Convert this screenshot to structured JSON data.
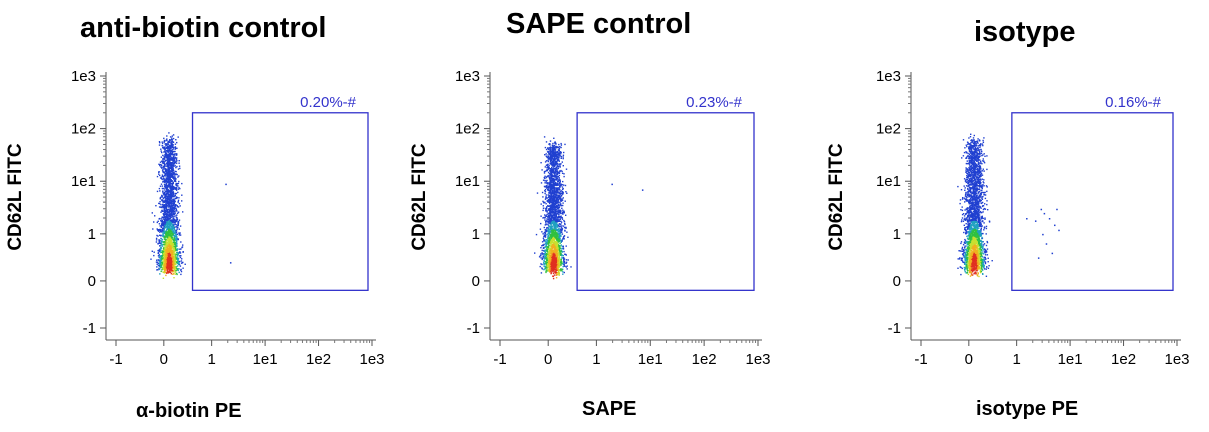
{
  "chart_data": [
    {
      "type": "scatter",
      "title": "anti-biotin control",
      "xlabel": "α-biotin PE",
      "ylabel": "CD62L FITC",
      "scale": "biexponential",
      "x_ticks": [
        "-1",
        "0",
        "1",
        "1e1",
        "1e2",
        "1e3"
      ],
      "y_ticks": [
        "-1",
        "0",
        "1",
        "1e1",
        "1e2",
        "1e3"
      ],
      "gate": {
        "x_range": [
          "0.6",
          "1e3"
        ],
        "y_range": [
          "-0.2",
          "2e2"
        ],
        "label": "0.20%-#"
      },
      "population": {
        "x_center": "0.1",
        "y_center": "0.3",
        "y_spread_to": "6e1"
      },
      "color": "#3333cc"
    },
    {
      "type": "scatter",
      "title": "SAPE control",
      "xlabel": "SAPE",
      "ylabel": "CD62L FITC",
      "scale": "biexponential",
      "x_ticks": [
        "-1",
        "0",
        "1",
        "1e1",
        "1e2",
        "1e3"
      ],
      "y_ticks": [
        "-1",
        "0",
        "1",
        "1e1",
        "1e2",
        "1e3"
      ],
      "gate": {
        "x_range": [
          "0.6",
          "1e3"
        ],
        "y_range": [
          "-0.2",
          "2e2"
        ],
        "label": "0.23%-#"
      },
      "population": {
        "x_center": "0.1",
        "y_center": "0.3",
        "y_spread_to": "5e1"
      },
      "color": "#3333cc"
    },
    {
      "type": "scatter",
      "title": "isotype",
      "xlabel": "isotype PE",
      "ylabel": "CD62L FITC",
      "scale": "biexponential",
      "x_ticks": [
        "-1",
        "0",
        "1",
        "1e1",
        "1e2",
        "1e3"
      ],
      "y_ticks": [
        "-1",
        "0",
        "1",
        "1e1",
        "1e2",
        "1e3"
      ],
      "gate": {
        "x_range": [
          "0.9",
          "1e3"
        ],
        "y_range": [
          "-0.2",
          "2e2"
        ],
        "label": "0.16%-#"
      },
      "population": {
        "x_center": "0.1",
        "y_center": "0.3",
        "y_spread_to": "6e1"
      },
      "color": "#3333cc"
    }
  ]
}
